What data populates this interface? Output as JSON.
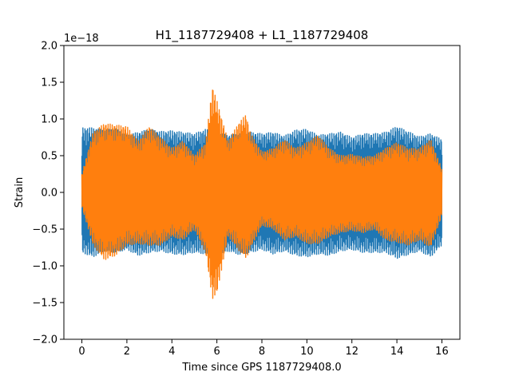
{
  "chart_data": {
    "type": "line",
    "title": "H1_1187729408 + L1_1187729408",
    "xlabel": "Time since GPS 1187729408.0",
    "ylabel": "Strain",
    "offset_label": "1e−18",
    "xlim": [
      -0.8,
      16.8
    ],
    "ylim": [
      -2.0,
      2.0
    ],
    "xticks": [
      0,
      2,
      4,
      6,
      8,
      10,
      12,
      14,
      16
    ],
    "yticks": [
      -2.0,
      -1.5,
      -1.0,
      -0.5,
      0.0,
      0.5,
      1.0,
      1.5,
      2.0
    ],
    "xtick_labels": [
      "0",
      "2",
      "4",
      "6",
      "8",
      "10",
      "12",
      "14",
      "16"
    ],
    "ytick_labels": [
      "−2.0",
      "−1.5",
      "−1.0",
      "−0.5",
      "0.0",
      "0.5",
      "1.0",
      "1.5",
      "2.0"
    ],
    "grid": false,
    "series": [
      {
        "color": "#1f77b4",
        "x": [
          0,
          0.5,
          1,
          1.5,
          2,
          2.5,
          3,
          3.5,
          4,
          4.5,
          5,
          5.5,
          6,
          6.5,
          7,
          7.5,
          8,
          8.5,
          9,
          9.5,
          10,
          10.5,
          11,
          11.5,
          12,
          12.5,
          13,
          13.5,
          14,
          14.5,
          15,
          15.5,
          16
        ],
        "upper": [
          0.88,
          0.88,
          0.85,
          0.87,
          0.78,
          0.82,
          0.86,
          0.83,
          0.84,
          0.82,
          0.8,
          0.86,
          0.82,
          0.78,
          0.8,
          0.82,
          0.8,
          0.82,
          0.77,
          0.85,
          0.86,
          0.78,
          0.8,
          0.82,
          0.75,
          0.8,
          0.8,
          0.82,
          0.9,
          0.83,
          0.76,
          0.8,
          0.72
        ],
        "lower": [
          -0.82,
          -0.88,
          -0.8,
          -0.82,
          -0.78,
          -0.86,
          -0.82,
          -0.8,
          -0.84,
          -0.85,
          -0.82,
          -0.84,
          -0.86,
          -0.8,
          -0.85,
          -0.82,
          -0.78,
          -0.84,
          -0.8,
          -0.86,
          -0.88,
          -0.84,
          -0.86,
          -0.8,
          -0.78,
          -0.82,
          -0.82,
          -0.82,
          -0.9,
          -0.85,
          -0.8,
          -0.88,
          -0.72
        ]
      },
      {
        "color": "#ff7f0e",
        "x": [
          0,
          0.5,
          1,
          1.5,
          2,
          2.5,
          3,
          3.5,
          4,
          4.5,
          5,
          5.5,
          5.8,
          6,
          6.5,
          7,
          7.3,
          7.5,
          8,
          8.5,
          9,
          9.5,
          10,
          10.5,
          11,
          11.5,
          12,
          12.5,
          13,
          13.5,
          14,
          14.5,
          15,
          15.5,
          16
        ],
        "upper": [
          0.25,
          0.82,
          0.94,
          0.92,
          0.9,
          0.7,
          0.9,
          0.75,
          0.6,
          0.7,
          0.5,
          0.68,
          1.45,
          1.25,
          0.7,
          0.96,
          1.06,
          0.8,
          0.55,
          0.6,
          0.72,
          0.6,
          0.68,
          0.78,
          0.6,
          0.5,
          0.52,
          0.48,
          0.5,
          0.6,
          0.68,
          0.6,
          0.6,
          0.72,
          0.32
        ],
        "lower": [
          -0.2,
          -0.72,
          -0.92,
          -0.86,
          -0.72,
          -0.7,
          -0.72,
          -0.72,
          -0.6,
          -0.65,
          -0.5,
          -0.82,
          -1.45,
          -1.38,
          -0.6,
          -0.8,
          -0.9,
          -0.76,
          -0.45,
          -0.5,
          -0.65,
          -0.6,
          -0.7,
          -0.7,
          -0.6,
          -0.55,
          -0.52,
          -0.55,
          -0.5,
          -0.65,
          -0.68,
          -0.72,
          -0.65,
          -0.75,
          -0.32
        ]
      }
    ]
  }
}
